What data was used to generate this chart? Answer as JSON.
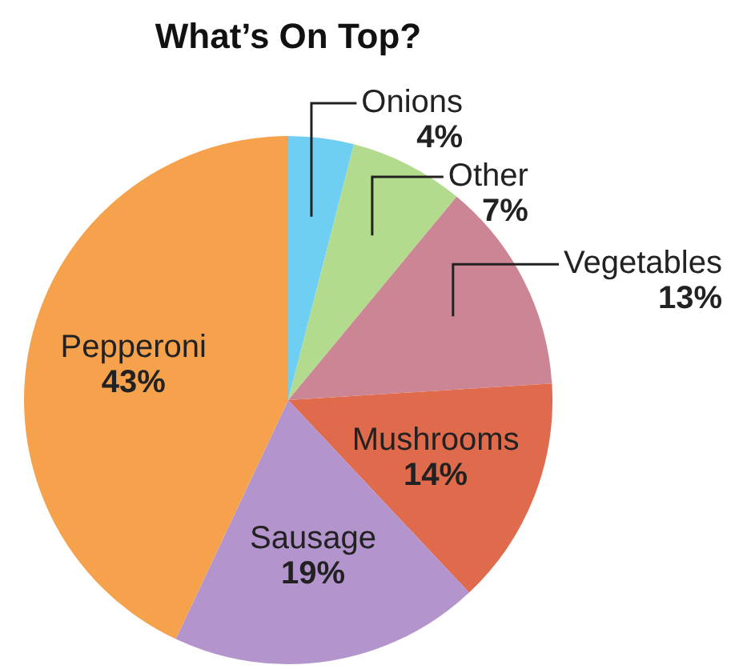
{
  "chart_data": {
    "type": "pie",
    "title": "What’s On Top?",
    "categories": [
      "Onions",
      "Other",
      "Vegetables",
      "Mushrooms",
      "Sausage",
      "Pepperoni"
    ],
    "values": [
      4,
      7,
      13,
      14,
      19,
      43
    ],
    "colors": [
      "#6fcff3",
      "#b2db8e",
      "#cc8594",
      "#e06a4c",
      "#b494cc",
      "#f6a24c"
    ],
    "value_labels": [
      "4%",
      "7%",
      "13%",
      "14%",
      "19%",
      "43%"
    ]
  }
}
